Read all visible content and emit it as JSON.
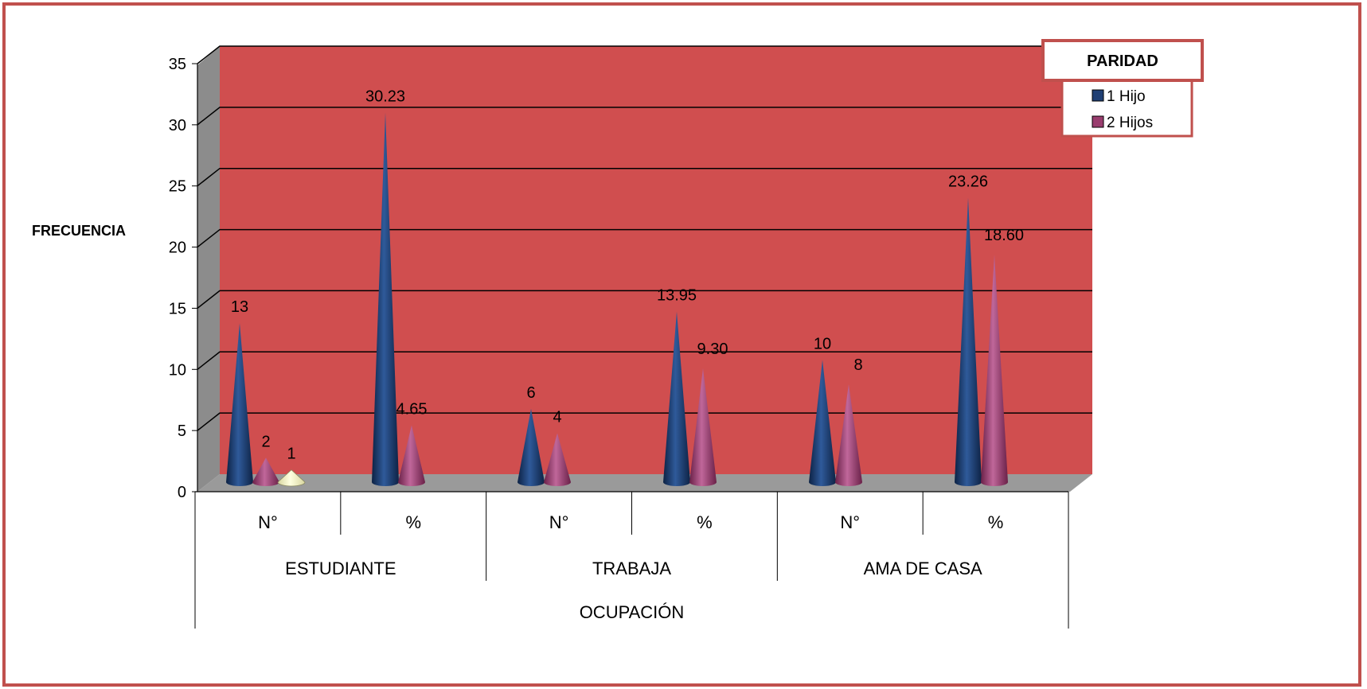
{
  "chart_data": {
    "type": "bar",
    "subtype": "3d-cone",
    "ylabel": "FRECUENCIA",
    "xlabel": "OCUPACIÓN",
    "ylim": [
      0,
      35
    ],
    "yticks": [
      0,
      5,
      10,
      15,
      20,
      25,
      30,
      35
    ],
    "grid": true,
    "categories": [
      {
        "group": "ESTUDIANTE",
        "sub": "N°"
      },
      {
        "group": "ESTUDIANTE",
        "sub": "%"
      },
      {
        "group": "TRABAJA",
        "sub": "N°"
      },
      {
        "group": "TRABAJA",
        "sub": "%"
      },
      {
        "group": "AMA DE CASA",
        "sub": "N°"
      },
      {
        "group": "AMA DE CASA",
        "sub": "%"
      }
    ],
    "groups": [
      "ESTUDIANTE",
      "TRABAJA",
      "AMA DE CASA"
    ],
    "series": [
      {
        "name": "1 Hijo",
        "color": "#1f3f74",
        "values": [
          13,
          30.23,
          6,
          13.95,
          10,
          23.26
        ],
        "labels": [
          "13",
          "30.23",
          "6",
          "13.95",
          "10",
          "23.26"
        ]
      },
      {
        "name": "2 Hijos",
        "color": "#993d6e",
        "values": [
          2,
          4.65,
          4,
          9.3,
          8,
          18.6
        ],
        "labels": [
          "2",
          "4.65",
          "4",
          "9.30",
          "8",
          "18.60"
        ]
      },
      {
        "color": "#ffffc8",
        "values": [
          1,
          null,
          null,
          null,
          null,
          null
        ],
        "labels": [
          "1",
          "",
          "",
          "",
          "",
          ""
        ]
      }
    ],
    "legend": {
      "title": "PARIDAD",
      "position": "top-right"
    }
  },
  "colors": {
    "plot_back": "#d04e4f",
    "frame_border": "#c0504d",
    "wall_side": "#8c8c8c",
    "floor": "#9a9a9a"
  }
}
